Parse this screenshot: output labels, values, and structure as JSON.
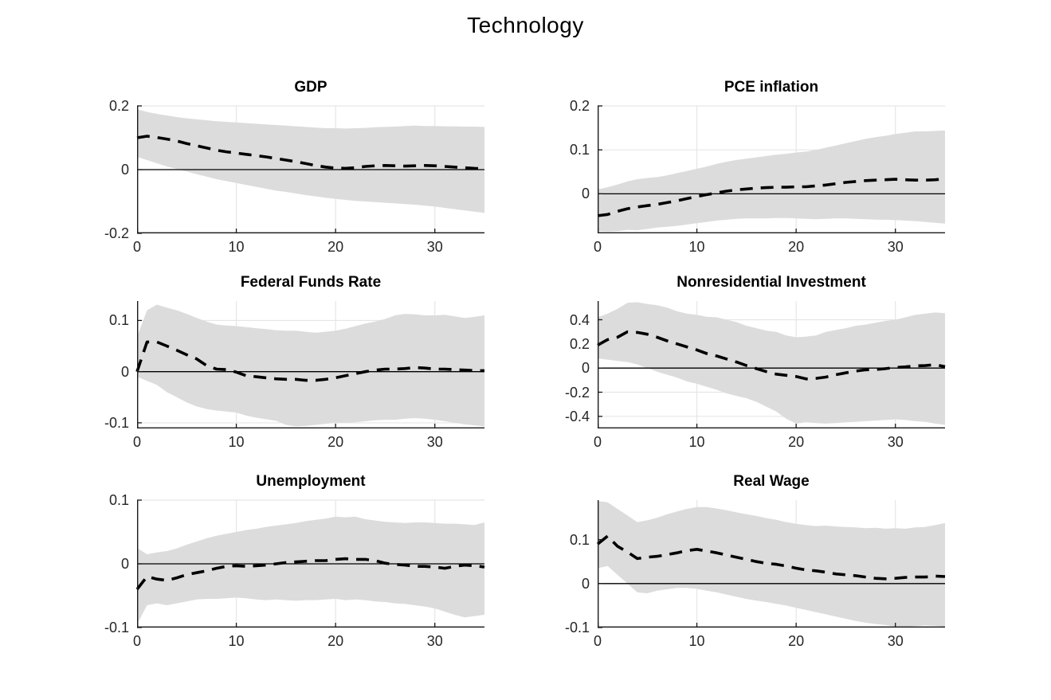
{
  "figure_title": "Technology",
  "styles": {
    "band_color": "#dcdcdc",
    "grid_color": "#e6e6e6",
    "axis_color": "#1a1a1a",
    "line_color": "#000000",
    "zero_line_color": "#000000",
    "tick_label_color": "#262626"
  },
  "chart_data": [
    {
      "type": "line",
      "title": "GDP",
      "xlabel": "",
      "ylabel": "",
      "grid": "on",
      "x_start": 0,
      "x_step": 1,
      "xlim": [
        0,
        35
      ],
      "xticks": {
        "values": [
          0,
          10,
          20,
          30
        ],
        "labels": [
          "0",
          "10",
          "20",
          "30"
        ]
      },
      "ylim": [
        -0.2,
        0.2
      ],
      "yticks": {
        "values": [
          -0.2,
          0,
          0.2
        ],
        "labels": [
          "-0.2",
          "0",
          "0.2"
        ]
      },
      "median": [
        0.1,
        0.105,
        0.101,
        0.096,
        0.09,
        0.082,
        0.075,
        0.068,
        0.061,
        0.056,
        0.052,
        0.048,
        0.044,
        0.04,
        0.035,
        0.03,
        0.025,
        0.019,
        0.013,
        0.008,
        0.005,
        0.004,
        0.006,
        0.01,
        0.012,
        0.013,
        0.012,
        0.011,
        0.012,
        0.013,
        0.012,
        0.01,
        0.008,
        0.006,
        0.004,
        0.003
      ],
      "band_upper": [
        0.19,
        0.181,
        0.175,
        0.17,
        0.165,
        0.161,
        0.158,
        0.155,
        0.152,
        0.15,
        0.148,
        0.146,
        0.144,
        0.142,
        0.14,
        0.138,
        0.136,
        0.134,
        0.132,
        0.13,
        0.13,
        0.129,
        0.13,
        0.131,
        0.133,
        0.134,
        0.135,
        0.137,
        0.138,
        0.137,
        0.137,
        0.136,
        0.136,
        0.135,
        0.135,
        0.134
      ],
      "band_lower": [
        0.04,
        0.03,
        0.02,
        0.01,
        0.002,
        -0.006,
        -0.014,
        -0.022,
        -0.03,
        -0.036,
        -0.042,
        -0.048,
        -0.054,
        -0.06,
        -0.066,
        -0.07,
        -0.075,
        -0.08,
        -0.084,
        -0.088,
        -0.092,
        -0.095,
        -0.098,
        -0.1,
        -0.102,
        -0.104,
        -0.106,
        -0.108,
        -0.11,
        -0.113,
        -0.116,
        -0.12,
        -0.124,
        -0.128,
        -0.132,
        -0.136
      ]
    },
    {
      "type": "line",
      "title": "PCE inflation",
      "xlabel": "",
      "ylabel": "",
      "grid": "on",
      "x_start": 0,
      "x_step": 1,
      "xlim": [
        0,
        35
      ],
      "xticks": {
        "values": [
          0,
          10,
          20,
          30
        ],
        "labels": [
          "0",
          "10",
          "20",
          "30"
        ]
      },
      "ylim": [
        -0.09,
        0.2
      ],
      "yticks": {
        "values": [
          0,
          0.1,
          0.2
        ],
        "labels": [
          "0",
          "0.1",
          "0.2"
        ]
      },
      "median": [
        -0.05,
        -0.047,
        -0.04,
        -0.034,
        -0.03,
        -0.027,
        -0.024,
        -0.02,
        -0.016,
        -0.011,
        -0.006,
        -0.002,
        0.002,
        0.006,
        0.009,
        0.011,
        0.013,
        0.014,
        0.015,
        0.015,
        0.016,
        0.016,
        0.018,
        0.02,
        0.023,
        0.026,
        0.028,
        0.03,
        0.031,
        0.032,
        0.033,
        0.032,
        0.031,
        0.031,
        0.032,
        0.034
      ],
      "band_upper": [
        0.01,
        0.015,
        0.021,
        0.028,
        0.033,
        0.036,
        0.038,
        0.042,
        0.047,
        0.052,
        0.057,
        0.062,
        0.068,
        0.073,
        0.077,
        0.08,
        0.083,
        0.086,
        0.089,
        0.091,
        0.094,
        0.096,
        0.1,
        0.105,
        0.11,
        0.115,
        0.12,
        0.125,
        0.129,
        0.132,
        0.136,
        0.139,
        0.142,
        0.142,
        0.143,
        0.144
      ],
      "band_lower": [
        -0.085,
        -0.086,
        -0.085,
        -0.082,
        -0.083,
        -0.08,
        -0.077,
        -0.075,
        -0.073,
        -0.07,
        -0.067,
        -0.064,
        -0.061,
        -0.059,
        -0.057,
        -0.056,
        -0.056,
        -0.056,
        -0.055,
        -0.055,
        -0.056,
        -0.057,
        -0.058,
        -0.057,
        -0.056,
        -0.056,
        -0.057,
        -0.058,
        -0.059,
        -0.059,
        -0.06,
        -0.061,
        -0.062,
        -0.064,
        -0.066,
        -0.068
      ]
    },
    {
      "type": "line",
      "title": "Federal Funds Rate",
      "xlabel": "",
      "ylabel": "",
      "grid": "on",
      "x_start": 0,
      "x_step": 1,
      "xlim": [
        0,
        35
      ],
      "xticks": {
        "values": [
          0,
          10,
          20,
          30
        ],
        "labels": [
          "0",
          "10",
          "20",
          "30"
        ]
      },
      "ylim": [
        -0.111,
        0.138
      ],
      "yticks": {
        "values": [
          -0.1,
          0,
          0.1
        ],
        "labels": [
          "-0.1",
          "0",
          "0.1"
        ]
      },
      "median": [
        0.0,
        0.058,
        0.058,
        0.05,
        0.042,
        0.033,
        0.025,
        0.012,
        0.005,
        0.004,
        -0.001,
        -0.008,
        -0.01,
        -0.012,
        -0.014,
        -0.015,
        -0.015,
        -0.017,
        -0.017,
        -0.015,
        -0.012,
        -0.008,
        -0.004,
        0.0,
        0.003,
        0.005,
        0.005,
        0.006,
        0.008,
        0.007,
        0.005,
        0.005,
        0.004,
        0.003,
        0.002,
        0.002
      ],
      "band_upper": [
        0.068,
        0.12,
        0.131,
        0.125,
        0.12,
        0.113,
        0.105,
        0.098,
        0.092,
        0.09,
        0.089,
        0.087,
        0.085,
        0.083,
        0.081,
        0.08,
        0.08,
        0.078,
        0.076,
        0.078,
        0.08,
        0.084,
        0.089,
        0.094,
        0.098,
        0.103,
        0.11,
        0.113,
        0.112,
        0.11,
        0.11,
        0.111,
        0.108,
        0.105,
        0.107,
        0.11
      ],
      "band_lower": [
        -0.01,
        -0.018,
        -0.026,
        -0.04,
        -0.05,
        -0.06,
        -0.068,
        -0.073,
        -0.076,
        -0.078,
        -0.08,
        -0.086,
        -0.09,
        -0.093,
        -0.096,
        -0.104,
        -0.107,
        -0.106,
        -0.104,
        -0.102,
        -0.1,
        -0.1,
        -0.099,
        -0.097,
        -0.095,
        -0.094,
        -0.094,
        -0.092,
        -0.091,
        -0.092,
        -0.094,
        -0.097,
        -0.1,
        -0.103,
        -0.105,
        -0.107
      ]
    },
    {
      "type": "line",
      "title": "Nonresidential Investment",
      "xlabel": "",
      "ylabel": "",
      "grid": "on",
      "x_start": 0,
      "x_step": 1,
      "xlim": [
        0,
        35
      ],
      "xticks": {
        "values": [
          0,
          10,
          20,
          30
        ],
        "labels": [
          "0",
          "10",
          "20",
          "30"
        ]
      },
      "ylim": [
        -0.5,
        0.555
      ],
      "yticks": {
        "values": [
          -0.4,
          -0.2,
          0,
          0.2,
          0.4
        ],
        "labels": [
          "-0.4",
          "-0.2",
          "0",
          "0.2",
          "0.4"
        ]
      },
      "median": [
        0.19,
        0.235,
        0.255,
        0.3,
        0.295,
        0.28,
        0.255,
        0.225,
        0.2,
        0.175,
        0.15,
        0.12,
        0.1,
        0.075,
        0.05,
        0.02,
        -0.005,
        -0.03,
        -0.05,
        -0.06,
        -0.07,
        -0.09,
        -0.085,
        -0.075,
        -0.055,
        -0.04,
        -0.025,
        -0.015,
        -0.012,
        -0.005,
        0.005,
        0.01,
        0.018,
        0.02,
        0.028,
        0.012
      ],
      "band_upper": [
        0.42,
        0.45,
        0.49,
        0.54,
        0.545,
        0.53,
        0.52,
        0.5,
        0.47,
        0.45,
        0.44,
        0.425,
        0.42,
        0.4,
        0.38,
        0.35,
        0.33,
        0.31,
        0.3,
        0.27,
        0.255,
        0.26,
        0.27,
        0.3,
        0.315,
        0.33,
        0.35,
        0.36,
        0.375,
        0.39,
        0.4,
        0.42,
        0.44,
        0.45,
        0.46,
        0.455
      ],
      "band_lower": [
        0.08,
        0.07,
        0.06,
        0.05,
        0.03,
        0.0,
        -0.03,
        -0.055,
        -0.08,
        -0.11,
        -0.13,
        -0.155,
        -0.18,
        -0.21,
        -0.23,
        -0.25,
        -0.28,
        -0.32,
        -0.36,
        -0.42,
        -0.46,
        -0.45,
        -0.455,
        -0.46,
        -0.455,
        -0.45,
        -0.445,
        -0.44,
        -0.435,
        -0.43,
        -0.425,
        -0.43,
        -0.44,
        -0.445,
        -0.46,
        -0.47
      ]
    },
    {
      "type": "line",
      "title": "Unemployment",
      "xlabel": "",
      "ylabel": "",
      "grid": "on",
      "x_start": 0,
      "x_step": 1,
      "xlim": [
        0,
        35
      ],
      "xticks": {
        "values": [
          0,
          10,
          20,
          30
        ],
        "labels": [
          "0",
          "10",
          "20",
          "30"
        ]
      },
      "ylim": [
        -0.1,
        0.1
      ],
      "yticks": {
        "values": [
          -0.1,
          0,
          0.1
        ],
        "labels": [
          "-0.1",
          "0",
          "0.1"
        ]
      },
      "median": [
        -0.04,
        -0.02,
        -0.024,
        -0.026,
        -0.022,
        -0.017,
        -0.014,
        -0.011,
        -0.007,
        -0.004,
        -0.003,
        -0.004,
        -0.003,
        -0.002,
        0.0,
        0.002,
        0.003,
        0.004,
        0.005,
        0.005,
        0.007,
        0.008,
        0.007,
        0.007,
        0.005,
        0.001,
        -0.001,
        -0.002,
        -0.004,
        -0.004,
        -0.005,
        -0.007,
        -0.004,
        -0.002,
        -0.003,
        -0.005
      ],
      "band_upper": [
        0.025,
        0.015,
        0.018,
        0.02,
        0.024,
        0.03,
        0.035,
        0.04,
        0.044,
        0.047,
        0.05,
        0.053,
        0.055,
        0.058,
        0.06,
        0.062,
        0.064,
        0.067,
        0.069,
        0.071,
        0.074,
        0.073,
        0.074,
        0.07,
        0.068,
        0.066,
        0.065,
        0.064,
        0.065,
        0.065,
        0.064,
        0.063,
        0.063,
        0.062,
        0.061,
        0.065
      ],
      "band_lower": [
        -0.095,
        -0.065,
        -0.062,
        -0.065,
        -0.062,
        -0.059,
        -0.056,
        -0.055,
        -0.055,
        -0.054,
        -0.053,
        -0.054,
        -0.056,
        -0.057,
        -0.056,
        -0.057,
        -0.058,
        -0.057,
        -0.057,
        -0.056,
        -0.055,
        -0.057,
        -0.056,
        -0.057,
        -0.059,
        -0.06,
        -0.062,
        -0.063,
        -0.065,
        -0.067,
        -0.07,
        -0.075,
        -0.08,
        -0.084,
        -0.082,
        -0.08
      ]
    },
    {
      "type": "line",
      "title": "Real Wage",
      "xlabel": "",
      "ylabel": "",
      "grid": "on",
      "x_start": 0,
      "x_step": 1,
      "xlim": [
        0,
        35
      ],
      "xticks": {
        "values": [
          0,
          10,
          20,
          30
        ],
        "labels": [
          "0",
          "10",
          "20",
          "30"
        ]
      },
      "ylim": [
        -0.1,
        0.19
      ],
      "yticks": {
        "values": [
          -0.1,
          0,
          0.1
        ],
        "labels": [
          "-0.1",
          "0",
          "0.1"
        ]
      },
      "median": [
        0.09,
        0.108,
        0.085,
        0.072,
        0.057,
        0.06,
        0.062,
        0.066,
        0.07,
        0.075,
        0.078,
        0.074,
        0.07,
        0.065,
        0.06,
        0.055,
        0.05,
        0.046,
        0.044,
        0.04,
        0.035,
        0.031,
        0.029,
        0.026,
        0.022,
        0.02,
        0.018,
        0.015,
        0.012,
        0.011,
        0.012,
        0.014,
        0.015,
        0.015,
        0.017,
        0.016
      ],
      "band_upper": [
        0.188,
        0.185,
        0.17,
        0.155,
        0.14,
        0.144,
        0.15,
        0.158,
        0.164,
        0.17,
        0.174,
        0.174,
        0.171,
        0.167,
        0.162,
        0.158,
        0.154,
        0.149,
        0.145,
        0.14,
        0.136,
        0.133,
        0.131,
        0.132,
        0.13,
        0.129,
        0.128,
        0.126,
        0.127,
        0.125,
        0.126,
        0.125,
        0.128,
        0.129,
        0.133,
        0.138
      ],
      "band_lower": [
        0.035,
        0.04,
        0.02,
        0.0,
        -0.02,
        -0.022,
        -0.016,
        -0.013,
        -0.01,
        -0.01,
        -0.012,
        -0.016,
        -0.02,
        -0.025,
        -0.03,
        -0.035,
        -0.039,
        -0.042,
        -0.046,
        -0.05,
        -0.055,
        -0.06,
        -0.065,
        -0.07,
        -0.075,
        -0.08,
        -0.085,
        -0.089,
        -0.092,
        -0.094,
        -0.098,
        -0.099,
        -0.097,
        -0.095,
        -0.096,
        -0.098
      ]
    }
  ]
}
